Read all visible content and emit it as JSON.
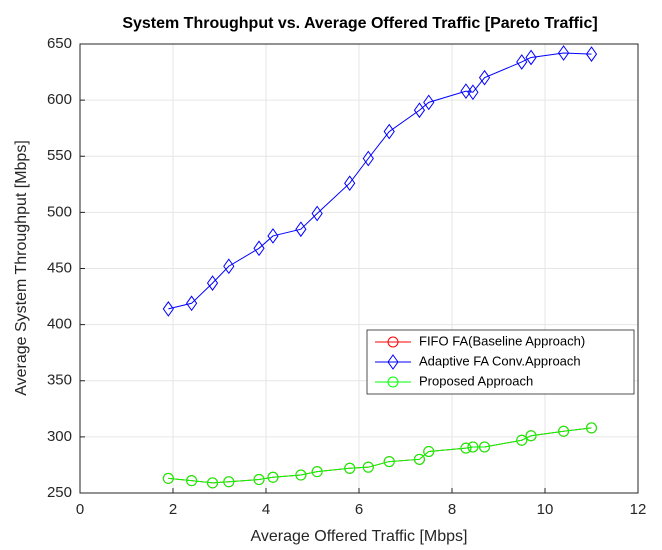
{
  "chart_data": {
    "type": "line",
    "title": "System Throughput vs. Average Offered Traffic [Pareto Traffic]",
    "x_label": "Average Offered Traffic [Mbps]",
    "y_label": "Average System Throughput [Mbps]",
    "x": [
      1.9,
      2.4,
      2.85,
      3.2,
      3.85,
      4.15,
      4.75,
      5.1,
      5.8,
      6.2,
      6.65,
      7.3,
      7.5,
      8.3,
      8.45,
      8.7,
      9.5,
      9.7,
      10.4,
      11.0
    ],
    "series": [
      {
        "name": "FIFO FA(Baseline Approach)",
        "color": "#ff0000",
        "marker": "circle",
        "values": [
          263,
          261,
          259,
          260,
          262,
          264,
          266,
          269,
          272,
          273,
          278,
          280,
          287,
          290,
          291,
          291,
          297,
          301,
          305,
          308
        ]
      },
      {
        "name": "Adaptive FA Conv.Approach",
        "color": "#0000ff",
        "marker": "diamond",
        "values": [
          414,
          419,
          437,
          452,
          468,
          479,
          485,
          499,
          526,
          548,
          572,
          591,
          598,
          608,
          607,
          620,
          634,
          638,
          642,
          641
        ]
      },
      {
        "name": "Proposed Approach",
        "color": "#00ff00",
        "marker": "circle",
        "values": [
          263,
          261,
          259,
          260,
          262,
          264,
          266,
          269,
          272,
          273,
          278,
          280,
          287,
          290,
          291,
          291,
          297,
          301,
          305,
          308
        ]
      }
    ],
    "xlim": [
      0,
      12
    ],
    "xticks": [
      0,
      2,
      4,
      6,
      8,
      10,
      12
    ],
    "ylim": [
      250,
      650
    ],
    "yticks": [
      250,
      300,
      350,
      400,
      450,
      500,
      550,
      600,
      650
    ],
    "grid": true,
    "legend": "east"
  }
}
